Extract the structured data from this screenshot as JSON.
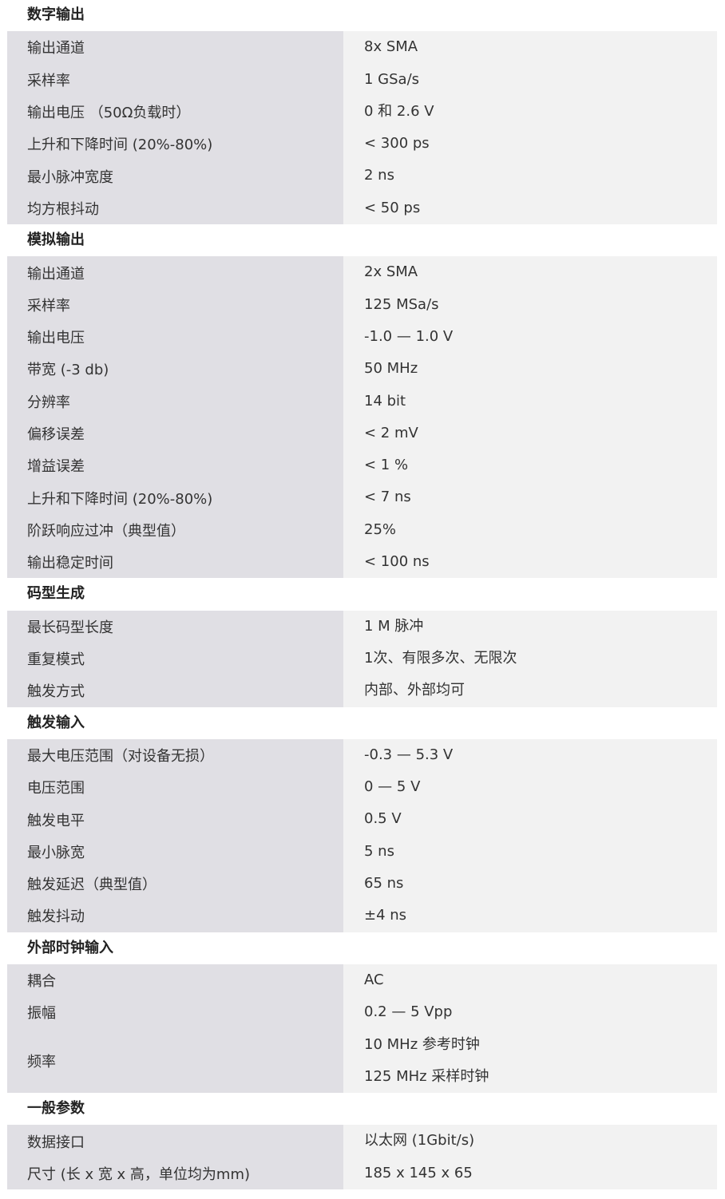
{
  "sections": [
    {
      "title": "数字输出",
      "rows": [
        {
          "label": "输出通道",
          "values": [
            "8x SMA"
          ]
        },
        {
          "label": "采样率",
          "values": [
            "1 GSa/s"
          ]
        },
        {
          "label": "输出电压 （50Ω负载时）",
          "values": [
            "0 和 2.6 V"
          ]
        },
        {
          "label": "上升和下降时间 (20%-80%)",
          "values": [
            "< 300 ps"
          ]
        },
        {
          "label": "最小脉冲宽度",
          "values": [
            "2 ns"
          ]
        },
        {
          "label": "均方根抖动",
          "values": [
            "< 50 ps"
          ]
        }
      ]
    },
    {
      "title": "模拟输出",
      "rows": [
        {
          "label": "输出通道",
          "values": [
            "2x SMA"
          ]
        },
        {
          "label": "采样率",
          "values": [
            "125 MSa/s"
          ]
        },
        {
          "label": "输出电压",
          "values": [
            "-1.0 — 1.0 V"
          ]
        },
        {
          "label": "带宽 (-3 db)",
          "values": [
            "50 MHz"
          ]
        },
        {
          "label": "分辨率",
          "values": [
            "14 bit"
          ]
        },
        {
          "label": "偏移误差",
          "values": [
            "< 2 mV"
          ]
        },
        {
          "label": "增益误差",
          "values": [
            "< 1 %"
          ]
        },
        {
          "label": "上升和下降时间 (20%-80%)",
          "values": [
            "< 7 ns"
          ]
        },
        {
          "label": "阶跃响应过冲（典型值）",
          "values": [
            "25%"
          ]
        },
        {
          "label": "输出稳定时间",
          "values": [
            "< 100 ns"
          ]
        }
      ]
    },
    {
      "title": "码型生成",
      "rows": [
        {
          "label": "最长码型长度",
          "values": [
            "1 M 脉冲"
          ]
        },
        {
          "label": "重复模式",
          "values": [
            "1次、有限多次、无限次"
          ]
        },
        {
          "label": "触发方式",
          "values": [
            "内部、外部均可"
          ]
        }
      ]
    },
    {
      "title": "触发输入",
      "rows": [
        {
          "label": "最大电压范围（对设备无损）",
          "values": [
            "-0.3 — 5.3 V"
          ]
        },
        {
          "label": "电压范围",
          "values": [
            "0 — 5 V"
          ]
        },
        {
          "label": "触发电平",
          "values": [
            "0.5 V"
          ]
        },
        {
          "label": "最小脉宽",
          "values": [
            "5 ns"
          ]
        },
        {
          "label": "触发延迟（典型值）",
          "values": [
            "65 ns"
          ]
        },
        {
          "label": "触发抖动",
          "values": [
            "±4 ns"
          ]
        }
      ]
    },
    {
      "title": "外部时钟输入",
      "rows": [
        {
          "label": "耦合",
          "values": [
            "AC"
          ]
        },
        {
          "label": "振幅",
          "values": [
            "0.2 — 5 Vpp"
          ]
        },
        {
          "label": "频率",
          "values": [
            "10 MHz 参考时钟",
            "125 MHz 采样时钟"
          ]
        }
      ]
    },
    {
      "title": "一般参数",
      "rows": [
        {
          "label": "数据接口",
          "values": [
            "以太网 (1Gbit/s)"
          ]
        },
        {
          "label": "尺寸 (长 x 宽 x 高，单位均为mm)",
          "values": [
            "185 x 145 x 65"
          ]
        }
      ]
    }
  ]
}
